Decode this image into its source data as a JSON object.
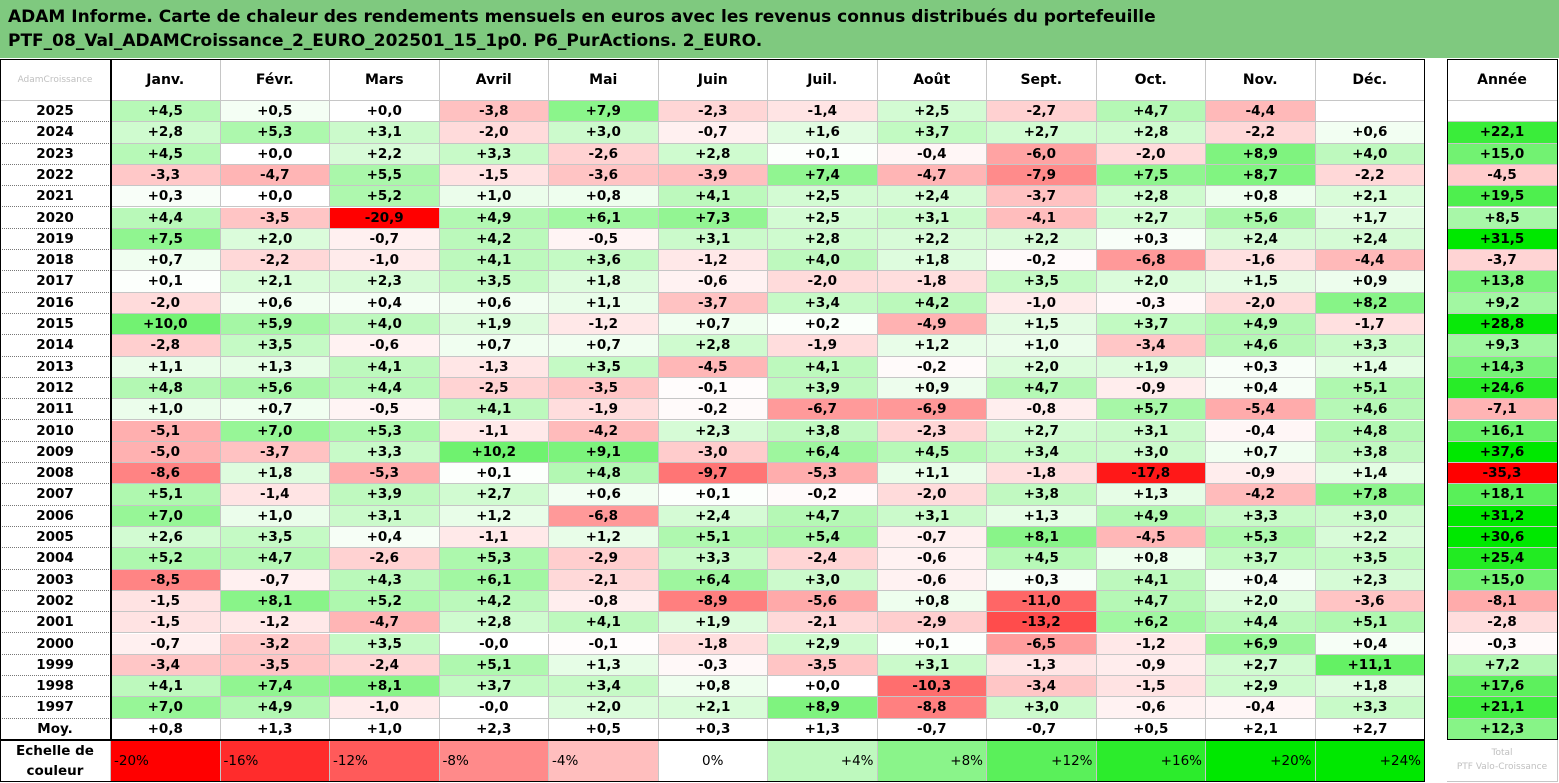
{
  "title": {
    "line1": "ADAM Informe. Carte de chaleur des rendements mensuels en euros avec les revenus connus distribués du portefeuille",
    "line2": "PTF_08_Val_ADAMCroissance_2_EURO_202501_15_1p0. P6_PurActions. 2_EURO."
  },
  "corner_watermark": "AdamCroissance",
  "colors": {
    "title_bg": "#7fc97f",
    "negative_max": "#ff0000",
    "neutral": "#ffffff",
    "positive_max": "#00e000"
  },
  "chart_data": {
    "type": "heatmap",
    "columns": [
      "Janv.",
      "Févr.",
      "Mars",
      "Avril",
      "Mai",
      "Juin",
      "Juil.",
      "Août",
      "Sept.",
      "Oct.",
      "Nov.",
      "Déc."
    ],
    "annual_header": "Année",
    "rows": [
      {
        "year": "2025",
        "values": [
          "+4,5",
          "+0,5",
          "+0,0",
          "-3,8",
          "+7,9",
          "-2,3",
          "-1,4",
          "+2,5",
          "-2,7",
          "+4,7",
          "-4,4",
          ""
        ],
        "annual": ""
      },
      {
        "year": "2024",
        "values": [
          "+2,8",
          "+5,3",
          "+3,1",
          "-2,0",
          "+3,0",
          "-0,7",
          "+1,6",
          "+3,7",
          "+2,7",
          "+2,8",
          "-2,2",
          "+0,6"
        ],
        "annual": "+22,1"
      },
      {
        "year": "2023",
        "values": [
          "+4,5",
          "+0,0",
          "+2,2",
          "+3,3",
          "-2,6",
          "+2,8",
          "+0,1",
          "-0,4",
          "-6,0",
          "-2,0",
          "+8,9",
          "+4,0"
        ],
        "annual": "+15,0"
      },
      {
        "year": "2022",
        "values": [
          "-3,3",
          "-4,7",
          "+5,5",
          "-1,5",
          "-3,6",
          "-3,9",
          "+7,4",
          "-4,7",
          "-7,9",
          "+7,5",
          "+8,7",
          "-2,2"
        ],
        "annual": "-4,5"
      },
      {
        "year": "2021",
        "values": [
          "+0,3",
          "+0,0",
          "+5,2",
          "+1,0",
          "+0,8",
          "+4,1",
          "+2,5",
          "+2,4",
          "-3,7",
          "+2,8",
          "+0,8",
          "+2,1"
        ],
        "annual": "+19,5"
      },
      {
        "year": "2020",
        "values": [
          "+4,4",
          "-3,5",
          "-20,9",
          "+4,9",
          "+6,1",
          "+7,3",
          "+2,5",
          "+3,1",
          "-4,1",
          "+2,7",
          "+5,6",
          "+1,7"
        ],
        "annual": "+8,5"
      },
      {
        "year": "2019",
        "values": [
          "+7,5",
          "+2,0",
          "-0,7",
          "+4,2",
          "-0,5",
          "+3,1",
          "+2,8",
          "+2,2",
          "+2,2",
          "+0,3",
          "+2,4",
          "+2,4"
        ],
        "annual": "+31,5"
      },
      {
        "year": "2018",
        "values": [
          "+0,7",
          "-2,2",
          "-1,0",
          "+4,1",
          "+3,6",
          "-1,2",
          "+4,0",
          "+1,8",
          "-0,2",
          "-6,8",
          "-1,6",
          "-4,4"
        ],
        "annual": "-3,7"
      },
      {
        "year": "2017",
        "values": [
          "+0,1",
          "+2,1",
          "+2,3",
          "+3,5",
          "+1,8",
          "-0,6",
          "-2,0",
          "-1,8",
          "+3,5",
          "+2,0",
          "+1,5",
          "+0,9"
        ],
        "annual": "+13,8"
      },
      {
        "year": "2016",
        "values": [
          "-2,0",
          "+0,6",
          "+0,4",
          "+0,6",
          "+1,1",
          "-3,7",
          "+3,4",
          "+4,2",
          "-1,0",
          "-0,3",
          "-2,0",
          "+8,2"
        ],
        "annual": "+9,2"
      },
      {
        "year": "2015",
        "values": [
          "+10,0",
          "+5,9",
          "+4,0",
          "+1,9",
          "-1,2",
          "+0,7",
          "+0,2",
          "-4,9",
          "+1,5",
          "+3,7",
          "+4,9",
          "-1,7"
        ],
        "annual": "+28,8"
      },
      {
        "year": "2014",
        "values": [
          "-2,8",
          "+3,5",
          "-0,6",
          "+0,7",
          "+0,7",
          "+2,8",
          "-1,9",
          "+1,2",
          "+1,0",
          "-3,4",
          "+4,6",
          "+3,3"
        ],
        "annual": "+9,3"
      },
      {
        "year": "2013",
        "values": [
          "+1,1",
          "+1,3",
          "+4,1",
          "-1,3",
          "+3,5",
          "-4,5",
          "+4,1",
          "-0,2",
          "+2,0",
          "+1,9",
          "+0,3",
          "+1,4"
        ],
        "annual": "+14,3"
      },
      {
        "year": "2012",
        "values": [
          "+4,8",
          "+5,6",
          "+4,4",
          "-2,5",
          "-3,5",
          "-0,1",
          "+3,9",
          "+0,9",
          "+4,7",
          "-0,9",
          "+0,4",
          "+5,1"
        ],
        "annual": "+24,6"
      },
      {
        "year": "2011",
        "values": [
          "+1,0",
          "+0,7",
          "-0,5",
          "+4,1",
          "-1,9",
          "-0,2",
          "-6,7",
          "-6,9",
          "-0,8",
          "+5,7",
          "-5,4",
          "+4,6"
        ],
        "annual": "-7,1"
      },
      {
        "year": "2010",
        "values": [
          "-5,1",
          "+7,0",
          "+5,3",
          "-1,1",
          "-4,2",
          "+2,3",
          "+3,8",
          "-2,3",
          "+2,7",
          "+3,1",
          "-0,4",
          "+4,8"
        ],
        "annual": "+16,1"
      },
      {
        "year": "2009",
        "values": [
          "-5,0",
          "-3,7",
          "+3,3",
          "+10,2",
          "+9,1",
          "-3,0",
          "+6,4",
          "+4,5",
          "+3,4",
          "+3,0",
          "+0,7",
          "+3,8"
        ],
        "annual": "+37,6"
      },
      {
        "year": "2008",
        "values": [
          "-8,6",
          "+1,8",
          "-5,3",
          "+0,1",
          "+4,8",
          "-9,7",
          "-5,3",
          "+1,1",
          "-1,8",
          "-17,8",
          "-0,9",
          "+1,4"
        ],
        "annual": "-35,3"
      },
      {
        "year": "2007",
        "values": [
          "+5,1",
          "-1,4",
          "+3,9",
          "+2,7",
          "+0,6",
          "+0,1",
          "-0,2",
          "-2,0",
          "+3,8",
          "+1,3",
          "-4,2",
          "+7,8"
        ],
        "annual": "+18,1"
      },
      {
        "year": "2006",
        "values": [
          "+7,0",
          "+1,0",
          "+3,1",
          "+1,2",
          "-6,8",
          "+2,4",
          "+4,7",
          "+3,1",
          "+1,3",
          "+4,9",
          "+3,3",
          "+3,0"
        ],
        "annual": "+31,2"
      },
      {
        "year": "2005",
        "values": [
          "+2,6",
          "+3,5",
          "+0,4",
          "-1,1",
          "+1,2",
          "+5,1",
          "+5,4",
          "-0,7",
          "+8,1",
          "-4,5",
          "+5,3",
          "+2,2"
        ],
        "annual": "+30,6"
      },
      {
        "year": "2004",
        "values": [
          "+5,2",
          "+4,7",
          "-2,6",
          "+5,3",
          "-2,9",
          "+3,3",
          "-2,4",
          "-0,6",
          "+4,5",
          "+0,8",
          "+3,7",
          "+3,5"
        ],
        "annual": "+25,4"
      },
      {
        "year": "2003",
        "values": [
          "-8,5",
          "-0,7",
          "+4,3",
          "+6,1",
          "-2,1",
          "+6,4",
          "+3,0",
          "-0,6",
          "+0,3",
          "+4,1",
          "+0,4",
          "+2,3"
        ],
        "annual": "+15,0"
      },
      {
        "year": "2002",
        "values": [
          "-1,5",
          "+8,1",
          "+5,2",
          "+4,2",
          "-0,8",
          "-8,9",
          "-5,6",
          "+0,8",
          "-11,0",
          "+4,7",
          "+2,0",
          "-3,6"
        ],
        "annual": "-8,1"
      },
      {
        "year": "2001",
        "values": [
          "-1,5",
          "-1,2",
          "-4,7",
          "+2,8",
          "+4,1",
          "+1,9",
          "-2,1",
          "-2,9",
          "-13,2",
          "+6,2",
          "+4,4",
          "+5,1"
        ],
        "annual": "-2,8"
      },
      {
        "year": "2000",
        "values": [
          "-0,7",
          "-3,2",
          "+3,5",
          "-0,0",
          "-0,1",
          "-1,8",
          "+2,9",
          "+0,1",
          "-6,5",
          "-1,2",
          "+6,9",
          "+0,4"
        ],
        "annual": "-0,3"
      },
      {
        "year": "1999",
        "values": [
          "-3,4",
          "-3,5",
          "-2,4",
          "+5,1",
          "+1,3",
          "-0,3",
          "-3,5",
          "+3,1",
          "-1,3",
          "-0,9",
          "+2,7",
          "+11,1"
        ],
        "annual": "+7,2"
      },
      {
        "year": "1998",
        "values": [
          "+4,1",
          "+7,4",
          "+8,1",
          "+3,7",
          "+3,4",
          "+0,8",
          "+0,0",
          "-10,3",
          "-3,4",
          "-1,5",
          "+2,9",
          "+1,8"
        ],
        "annual": "+17,6"
      },
      {
        "year": "1997",
        "values": [
          "+7,0",
          "+4,9",
          "-1,0",
          "-0,0",
          "+2,0",
          "+2,1",
          "+8,9",
          "-8,8",
          "+3,0",
          "-0,6",
          "-0,4",
          "+3,3"
        ],
        "annual": "+21,1"
      }
    ],
    "average": {
      "label": "Moy.",
      "values": [
        "+0,8",
        "+1,3",
        "+1,0",
        "+2,3",
        "+0,5",
        "+0,3",
        "+1,3",
        "-0,7",
        "-0,7",
        "+0,5",
        "+2,1",
        "+2,7"
      ],
      "annual": "+12,3"
    },
    "scale": {
      "label_line1": "Echelle de",
      "label_line2": "couleur",
      "steps": [
        "-20%",
        "-16%",
        "-12%",
        "-8%",
        "-4%",
        "0%",
        "+4%",
        "+8%",
        "+12%",
        "+16%",
        "+20%",
        "+24%"
      ],
      "watermark_line1": "Total",
      "watermark_line2": "PTF Valo-Croissance"
    }
  }
}
